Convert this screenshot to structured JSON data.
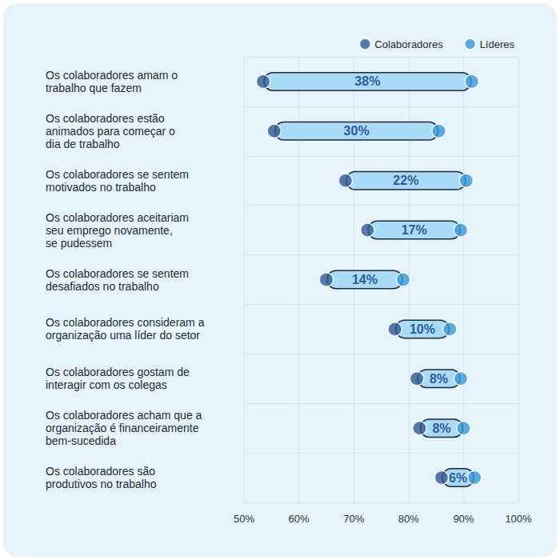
{
  "chart_data": {
    "type": "dumbbell",
    "orientation": "horizontal",
    "categories": [
      "Os colaboradores amam o\ntrabalho que fazem",
      "Os colaboradores estão\nanimados para começar o\ndia de trabalho",
      "Os colaboradores se sentem\nmotivados no trabalho",
      "Os colaboradores aceitariam\nseu emprego novamente,\nse pudessem",
      "Os colaboradores se sentem\ndesafiados no trabalho",
      "Os colaboradores consideram a\norganização uma líder do setor",
      "Os colaboradores gostam de\ninteragir com os colegas",
      "Os colaboradores acham que a\norganização é financeiramente\nbem-sucedida",
      "Os colaboradores são\nprodutivos no trabalho"
    ],
    "series": [
      {
        "name": "Colaboradores",
        "color": "#33598f",
        "values": [
          53.5,
          55.5,
          68.5,
          72.5,
          65,
          77.5,
          81.5,
          82,
          86
        ]
      },
      {
        "name": "Líderes",
        "color": "#3b97d6",
        "values": [
          91.5,
          85.5,
          90.5,
          89.5,
          79,
          87.5,
          89.5,
          90,
          92
        ]
      }
    ],
    "gaps": [
      38,
      30,
      22,
      17,
      14,
      10,
      8,
      8,
      6
    ],
    "gap_labels": [
      "38%",
      "30%",
      "22%",
      "17%",
      "14%",
      "10%",
      "8%",
      "8%",
      "6%"
    ],
    "xlim": [
      50,
      100
    ],
    "xticks": [
      {
        "value": 50,
        "label": "50%"
      },
      {
        "value": 60,
        "label": "60%"
      },
      {
        "value": 70,
        "label": "70%"
      },
      {
        "value": 80,
        "label": "80%"
      },
      {
        "value": 90,
        "label": "90%"
      },
      {
        "value": 100,
        "label": "100%"
      }
    ],
    "grid": true,
    "legend": "top-right",
    "data_labels": true
  }
}
